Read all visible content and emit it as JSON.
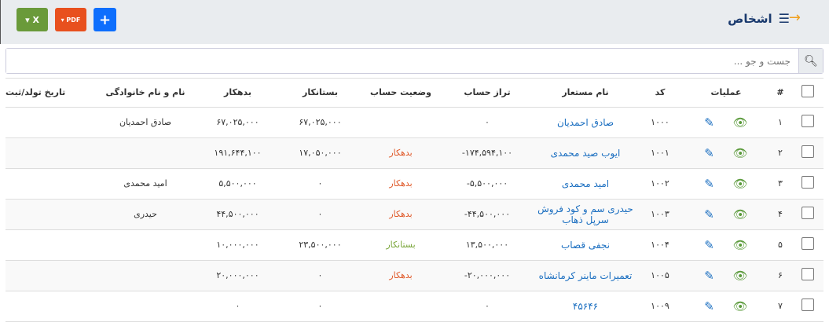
{
  "header": {
    "title": "اشخاص",
    "back_icon": "arrow-right-icon",
    "list_icon": "list-icon"
  },
  "toolbar": {
    "add_label": "+",
    "pdf_label": "PDF",
    "excel_label": "X",
    "colors": {
      "add": "#0d6efd",
      "pdf": "#e8501e",
      "excel": "#6a9a3a"
    }
  },
  "search": {
    "placeholder": "جست و جو ..."
  },
  "table": {
    "headers": {
      "index": "#",
      "ops": "عملیات",
      "code": "کد",
      "alias": "نام مستعار",
      "balance": "تراز حساب",
      "status": "وضعیت حساب",
      "creditor": "بستانکار",
      "debtor": "بدهکار",
      "fullname": "نام و نام خانوادگی",
      "date": "تاریخ تولد/ثبت"
    },
    "rows": [
      {
        "index": "۱",
        "code": "۱۰۰۰",
        "alias": "صادق احمدیان",
        "balance": "۰",
        "status": "",
        "creditor": "۶۷,۰۲۵,۰۰۰",
        "debtor": "۶۷,۰۲۵,۰۰۰",
        "fullname": "صادق احمدیان",
        "date": ""
      },
      {
        "index": "۲",
        "code": "۱۰۰۱",
        "alias": "ایوب صید محمدی",
        "balance": "۱۷۴,۵۹۴,۱۰۰-",
        "status": "بدهکار",
        "creditor": "۱۷,۰۵۰,۰۰۰",
        "debtor": "۱۹۱,۶۴۴,۱۰۰",
        "fullname": "",
        "date": ""
      },
      {
        "index": "۳",
        "code": "۱۰۰۲",
        "alias": "امید محمدی",
        "balance": "۵,۵۰۰,۰۰۰-",
        "status": "بدهکار",
        "creditor": "۰",
        "debtor": "۵,۵۰۰,۰۰۰",
        "fullname": "امید محمدی",
        "date": ""
      },
      {
        "index": "۴",
        "code": "۱۰۰۳",
        "alias": "حیدری سم و کود فروش سرپل ذهاب",
        "balance": "۴۴,۵۰۰,۰۰۰-",
        "status": "بدهکار",
        "creditor": "۰",
        "debtor": "۴۴,۵۰۰,۰۰۰",
        "fullname": "حیدری",
        "date": ""
      },
      {
        "index": "۵",
        "code": "۱۰۰۴",
        "alias": "نجفی قصاب",
        "balance": "۱۳,۵۰۰,۰۰۰",
        "status": "بستانکار",
        "creditor": "۲۳,۵۰۰,۰۰۰",
        "debtor": "۱۰,۰۰۰,۰۰۰",
        "fullname": "",
        "date": ""
      },
      {
        "index": "۶",
        "code": "۱۰۰۵",
        "alias": "تعمیرات ماینر کرمانشاه",
        "balance": "۲۰,۰۰۰,۰۰۰-",
        "status": "بدهکار",
        "creditor": "۰",
        "debtor": "۲۰,۰۰۰,۰۰۰",
        "fullname": "",
        "date": ""
      },
      {
        "index": "۷",
        "code": "۱۰۰۹",
        "alias": "۴۵۶۴۶",
        "balance": "۰",
        "status": "",
        "creditor": "۰",
        "debtor": "۰",
        "fullname": "",
        "date": ""
      }
    ]
  },
  "status_colors": {
    "بدهکار": "#e05a2a",
    "بستانکار": "#7aa63a"
  }
}
